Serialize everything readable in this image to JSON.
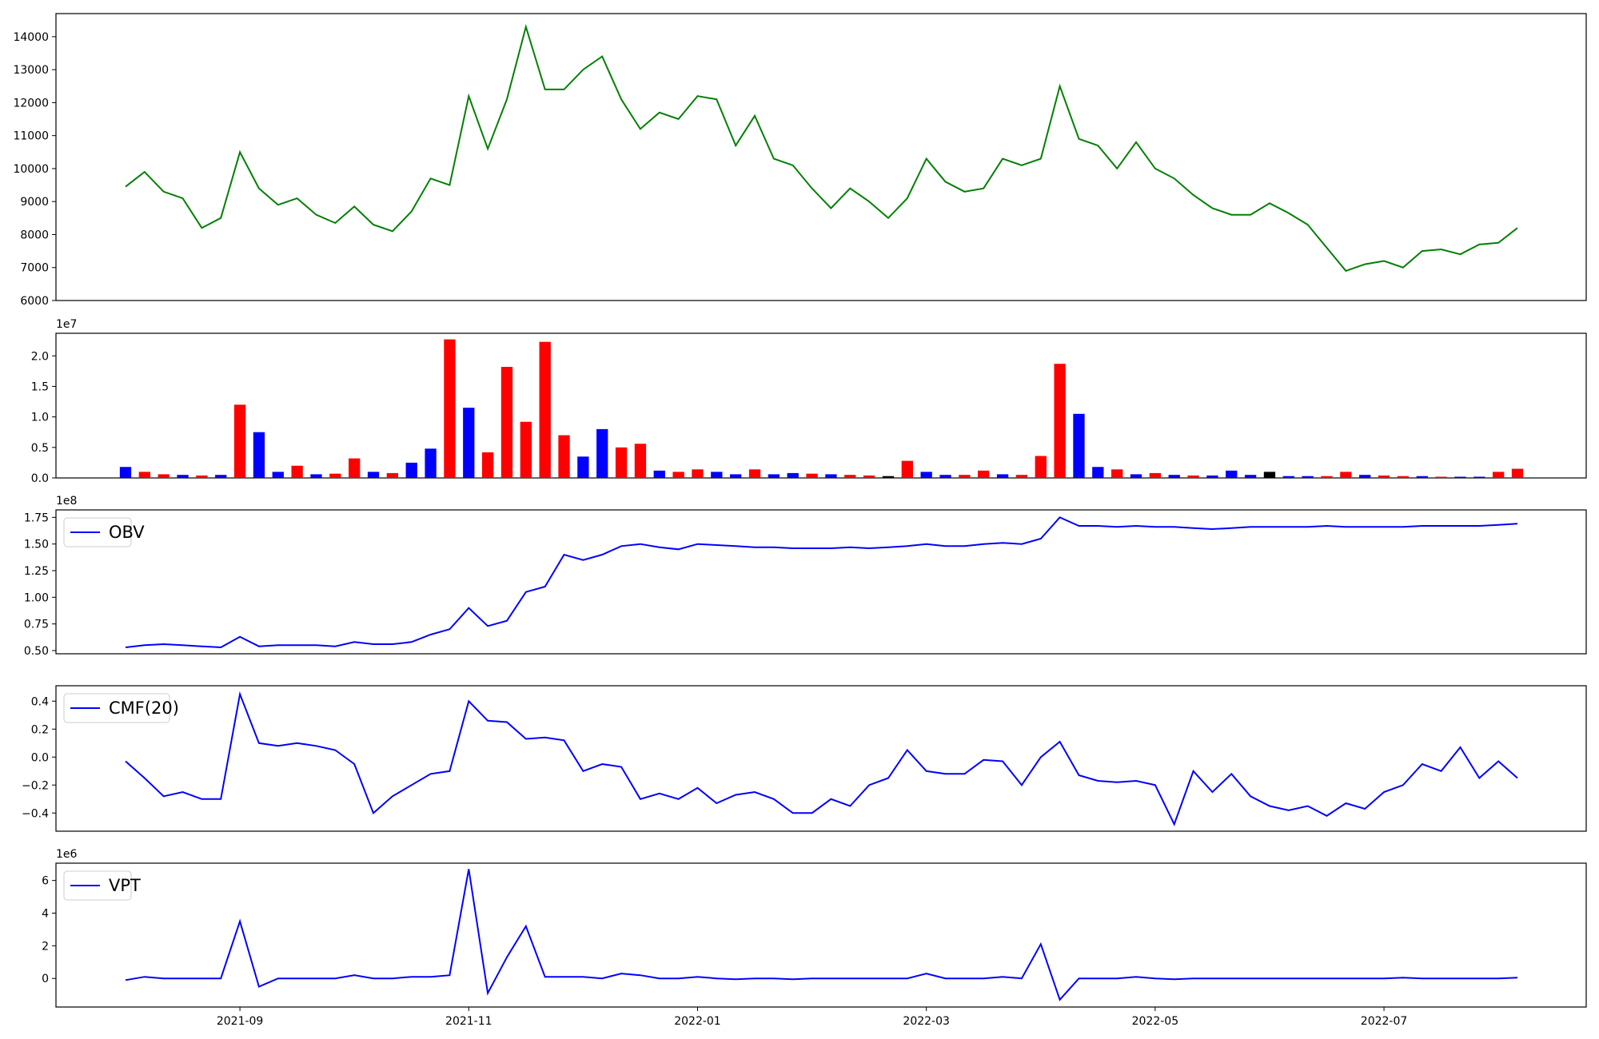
{
  "chart_data": [
    {
      "type": "line",
      "ylim": [
        6000,
        14700
      ],
      "yticks": [
        6000,
        7000,
        8000,
        9000,
        10000,
        11000,
        12000,
        13000,
        14000
      ],
      "series": [
        {
          "color": "#008000",
          "values": [
            9450,
            9900,
            9300,
            9100,
            8200,
            8500,
            10500,
            9400,
            8900,
            9100,
            8600,
            8350,
            8850,
            8300,
            8100,
            8700,
            9700,
            9500,
            12200,
            10600,
            12100,
            14300,
            12400,
            12400,
            13000,
            13400,
            12100,
            11200,
            11700,
            11500,
            12200,
            12100,
            10700,
            11600,
            10300,
            10100,
            9400,
            8800,
            9400,
            9000,
            8500,
            9100,
            10300,
            9600,
            9300,
            9400,
            10300,
            10100,
            10300,
            12500,
            10900,
            10700,
            10000,
            10800,
            10000,
            9700,
            9200,
            8800,
            8600,
            8600,
            8950,
            8650,
            8300,
            7600,
            6900,
            7100,
            7200,
            7000,
            7500,
            7550,
            7400,
            7700,
            7750,
            8200
          ]
        }
      ]
    },
    {
      "type": "bar",
      "offset_label": "1e7",
      "ylim": [
        0,
        2.37
      ],
      "yticks": [
        {
          "value": 0,
          "label": "0.0"
        },
        0.5,
        {
          "value": 1,
          "label": "1.0"
        },
        1.5,
        {
          "value": 2,
          "label": "2.0"
        }
      ],
      "values": [
        0.18,
        0.1,
        0.06,
        0.05,
        0.04,
        0.05,
        1.2,
        0.75,
        0.1,
        0.2,
        0.06,
        0.07,
        0.32,
        0.1,
        0.08,
        0.25,
        0.48,
        2.27,
        1.15,
        0.42,
        1.82,
        0.92,
        2.23,
        0.7,
        0.35,
        0.8,
        0.5,
        0.56,
        0.12,
        0.1,
        0.14,
        0.1,
        0.06,
        0.14,
        0.06,
        0.08,
        0.07,
        0.06,
        0.05,
        0.04,
        0.03,
        0.28,
        0.1,
        0.05,
        0.05,
        0.12,
        0.06,
        0.05,
        0.36,
        1.87,
        1.05,
        0.18,
        0.14,
        0.06,
        0.08,
        0.05,
        0.04,
        0.04,
        0.12,
        0.05,
        0.1,
        0.03,
        0.03,
        0.03,
        0.1,
        0.05,
        0.04,
        0.03,
        0.03,
        0.02,
        0.02,
        0.02,
        0.1,
        0.15
      ],
      "colors": [
        "#0000ff",
        "#ff0000",
        "#ff0000",
        "#0000ff",
        "#ff0000",
        "#0000ff",
        "#ff0000",
        "#0000ff",
        "#0000ff",
        "#ff0000",
        "#0000ff",
        "#ff0000",
        "#ff0000",
        "#0000ff",
        "#ff0000",
        "#0000ff",
        "#0000ff",
        "#ff0000",
        "#0000ff",
        "#ff0000",
        "#ff0000",
        "#ff0000",
        "#ff0000",
        "#ff0000",
        "#0000ff",
        "#0000ff",
        "#ff0000",
        "#ff0000",
        "#0000ff",
        "#ff0000",
        "#ff0000",
        "#0000ff",
        "#0000ff",
        "#ff0000",
        "#0000ff",
        "#0000ff",
        "#ff0000",
        "#0000ff",
        "#ff0000",
        "#ff0000",
        "#000000",
        "#ff0000",
        "#0000ff",
        "#0000ff",
        "#ff0000",
        "#ff0000",
        "#0000ff",
        "#ff0000",
        "#ff0000",
        "#ff0000",
        "#0000ff",
        "#0000ff",
        "#ff0000",
        "#0000ff",
        "#ff0000",
        "#0000ff",
        "#ff0000",
        "#0000ff",
        "#0000ff",
        "#0000ff",
        "#000000",
        "#0000ff",
        "#0000ff",
        "#ff0000",
        "#ff0000",
        "#0000ff",
        "#ff0000",
        "#ff0000",
        "#0000ff",
        "#ff0000",
        "#0000ff",
        "#0000ff",
        "#ff0000",
        "#ff0000"
      ]
    },
    {
      "type": "line",
      "offset_label": "1e8",
      "ylim": [
        0.47,
        1.82
      ],
      "legend": "upper left",
      "yticks": [
        {
          "value": 0.5,
          "label": "0.50"
        },
        0.75,
        {
          "value": 1,
          "label": "1.00"
        },
        1.25,
        {
          "value": 1.5,
          "label": "1.50"
        },
        1.75
      ],
      "series": [
        {
          "name": "OBV",
          "color": "#0000ff",
          "values": [
            0.53,
            0.55,
            0.56,
            0.55,
            0.54,
            0.53,
            0.63,
            0.54,
            0.55,
            0.55,
            0.55,
            0.54,
            0.58,
            0.56,
            0.56,
            0.58,
            0.65,
            0.7,
            0.9,
            0.73,
            0.78,
            1.05,
            1.1,
            1.4,
            1.35,
            1.4,
            1.48,
            1.5,
            1.47,
            1.45,
            1.5,
            1.49,
            1.48,
            1.47,
            1.47,
            1.46,
            1.46,
            1.46,
            1.47,
            1.46,
            1.47,
            1.48,
            1.5,
            1.48,
            1.48,
            1.5,
            1.51,
            1.5,
            1.55,
            1.75,
            1.67,
            1.67,
            1.66,
            1.67,
            1.66,
            1.66,
            1.65,
            1.64,
            1.65,
            1.66,
            1.66,
            1.66,
            1.66,
            1.67,
            1.66,
            1.66,
            1.66,
            1.66,
            1.67,
            1.67,
            1.67,
            1.67,
            1.68,
            1.69
          ]
        }
      ]
    },
    {
      "type": "line",
      "ylim": [
        -0.53,
        0.51
      ],
      "legend": "upper left",
      "yticks": [
        {
          "value": -0.4,
          "label": "−0.4"
        },
        {
          "value": -0.2,
          "label": "−0.2"
        },
        {
          "value": 0,
          "label": "0.0"
        },
        0.2,
        0.4
      ],
      "series": [
        {
          "name": "CMF(20)",
          "color": "#0000ff",
          "values": [
            -0.03,
            -0.15,
            -0.28,
            -0.25,
            -0.3,
            -0.3,
            0.45,
            0.1,
            0.08,
            0.1,
            0.08,
            0.05,
            -0.05,
            -0.4,
            -0.28,
            -0.2,
            -0.12,
            -0.1,
            0.4,
            0.26,
            0.25,
            0.13,
            0.14,
            0.12,
            -0.1,
            -0.05,
            -0.07,
            -0.3,
            -0.26,
            -0.3,
            -0.22,
            -0.33,
            -0.27,
            -0.25,
            -0.3,
            -0.4,
            -0.4,
            -0.3,
            -0.35,
            -0.2,
            -0.15,
            0.05,
            -0.1,
            -0.12,
            -0.12,
            -0.02,
            -0.03,
            -0.2,
            0.0,
            0.11,
            -0.13,
            -0.17,
            -0.18,
            -0.17,
            -0.2,
            -0.48,
            -0.1,
            -0.25,
            -0.12,
            -0.28,
            -0.35,
            -0.38,
            -0.35,
            -0.42,
            -0.33,
            -0.37,
            -0.25,
            -0.2,
            -0.05,
            -0.1,
            0.07,
            -0.15,
            -0.03,
            -0.15
          ]
        }
      ]
    },
    {
      "type": "line",
      "offset_label": "1e6",
      "ylim": [
        -1.75,
        7.06
      ],
      "legend": "upper left",
      "yticks": [
        0,
        2,
        4,
        6
      ],
      "categories": [
        null,
        null,
        null,
        null,
        null,
        null,
        "2021-09",
        null,
        null,
        null,
        null,
        null,
        null,
        null,
        null,
        null,
        null,
        null,
        "2021-11",
        null,
        null,
        null,
        null,
        null,
        null,
        null,
        null,
        null,
        null,
        null,
        "2022-01",
        null,
        null,
        null,
        null,
        null,
        null,
        null,
        null,
        null,
        null,
        null,
        "2022-03",
        null,
        null,
        null,
        null,
        null,
        null,
        null,
        null,
        null,
        null,
        null,
        "2022-05",
        null,
        null,
        null,
        null,
        null,
        null,
        null,
        null,
        null,
        null,
        null,
        "2022-07",
        null,
        null,
        null,
        null,
        null,
        null,
        null
      ],
      "series": [
        {
          "name": "VPT",
          "color": "#0000ff",
          "values": [
            -0.1,
            0.1,
            0,
            0,
            0,
            0,
            3.5,
            -0.5,
            0,
            0,
            0,
            0,
            0.2,
            0,
            0,
            0.1,
            0.1,
            0.2,
            6.7,
            -0.9,
            1.3,
            3.2,
            0.1,
            0.1,
            0.1,
            0,
            0.3,
            0.2,
            0,
            0,
            0.1,
            0,
            -0.05,
            0,
            0,
            -0.05,
            0,
            0,
            0,
            0,
            0,
            0,
            0.3,
            0,
            0,
            0,
            0.1,
            0,
            2.1,
            -1.3,
            0,
            0,
            0,
            0.1,
            0,
            -0.05,
            0,
            0,
            0,
            0,
            0,
            0,
            0,
            0,
            0,
            0,
            0,
            0.05,
            0,
            0,
            0,
            0,
            0,
            0.05
          ]
        }
      ]
    }
  ]
}
